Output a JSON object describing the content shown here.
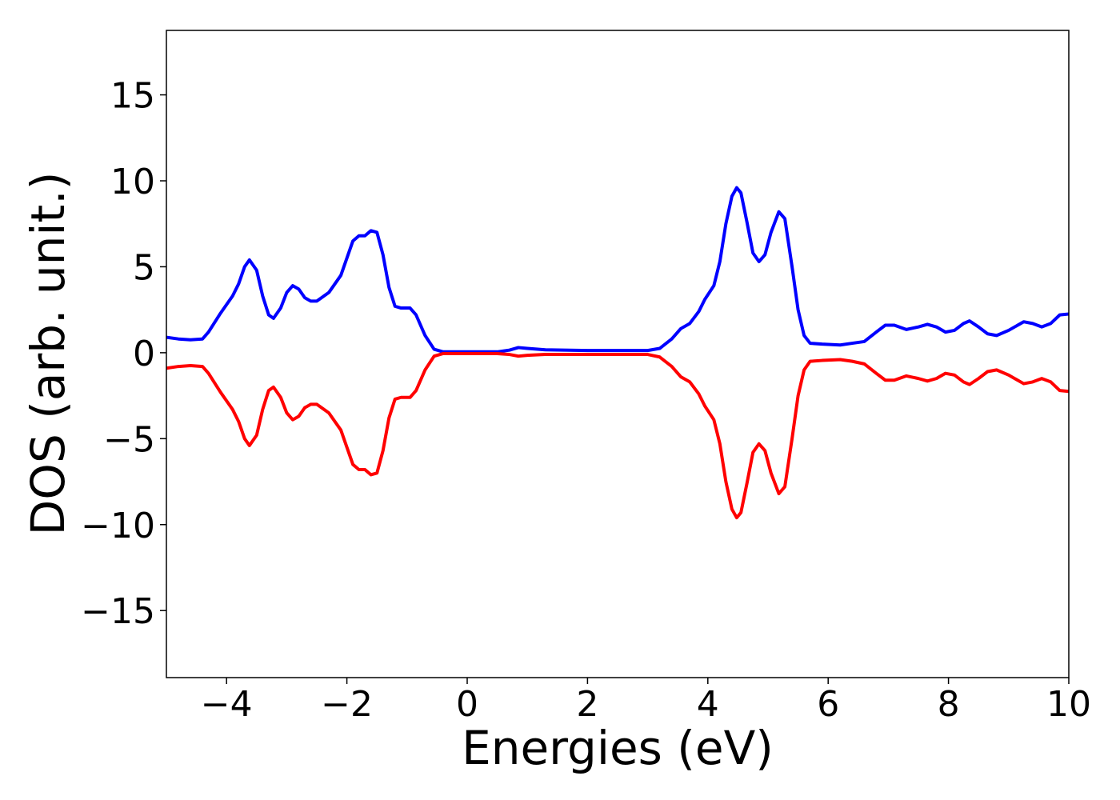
{
  "chart_data": {
    "type": "line",
    "xlabel": "Energies (eV)",
    "ylabel": "DOS (arb. unit.)",
    "x": [
      -5,
      -4.8,
      -4.6,
      -4.4,
      -4.3,
      -4.1,
      -3.9,
      -3.8,
      -3.7,
      -3.62,
      -3.5,
      -3.4,
      -3.3,
      -3.22,
      -3.1,
      -3.0,
      -2.9,
      -2.8,
      -2.7,
      -2.6,
      -2.5,
      -2.3,
      -2.1,
      -2.0,
      -1.9,
      -1.8,
      -1.7,
      -1.6,
      -1.5,
      -1.4,
      -1.3,
      -1.2,
      -1.1,
      -0.95,
      -0.85,
      -0.7,
      -0.55,
      -0.4,
      0,
      0.5,
      0.7,
      0.85,
      1.0,
      1.3,
      2,
      3,
      3.2,
      3.4,
      3.55,
      3.7,
      3.85,
      3.95,
      4.1,
      4.2,
      4.3,
      4.4,
      4.48,
      4.55,
      4.65,
      4.75,
      4.85,
      4.95,
      5.05,
      5.18,
      5.28,
      5.4,
      5.5,
      5.6,
      5.7,
      5.9,
      6.2,
      6.4,
      6.6,
      6.8,
      6.95,
      7.1,
      7.3,
      7.5,
      7.65,
      7.8,
      7.95,
      8.1,
      8.25,
      8.35,
      8.5,
      8.65,
      8.8,
      9.0,
      9.25,
      9.4,
      9.55,
      9.7,
      9.85,
      10
    ],
    "series": [
      {
        "color": "#0000ff",
        "values": [
          0.9,
          0.8,
          0.75,
          0.8,
          1.2,
          2.3,
          3.3,
          4.0,
          5.0,
          5.4,
          4.8,
          3.3,
          2.2,
          2.0,
          2.6,
          3.5,
          3.9,
          3.7,
          3.2,
          3.0,
          3.0,
          3.5,
          4.5,
          5.5,
          6.5,
          6.8,
          6.8,
          7.1,
          7.0,
          5.7,
          3.8,
          2.7,
          2.6,
          2.6,
          2.2,
          1.0,
          0.2,
          0.05,
          0.05,
          0.05,
          0.15,
          0.3,
          0.25,
          0.17,
          0.13,
          0.13,
          0.25,
          0.8,
          1.4,
          1.7,
          2.4,
          3.1,
          3.9,
          5.3,
          7.5,
          9.1,
          9.6,
          9.3,
          7.6,
          5.8,
          5.3,
          5.7,
          7.0,
          8.2,
          7.8,
          5.0,
          2.5,
          1.0,
          0.55,
          0.5,
          0.45,
          0.55,
          0.65,
          1.2,
          1.6,
          1.6,
          1.35,
          1.5,
          1.65,
          1.5,
          1.2,
          1.3,
          1.7,
          1.85,
          1.5,
          1.1,
          1.0,
          1.3,
          1.8,
          1.7,
          1.5,
          1.7,
          2.2,
          2.25
        ]
      },
      {
        "color": "#ff0000",
        "values": [
          -0.9,
          -0.8,
          -0.75,
          -0.8,
          -1.2,
          -2.3,
          -3.3,
          -4.0,
          -5.0,
          -5.4,
          -4.8,
          -3.3,
          -2.2,
          -2.0,
          -2.6,
          -3.5,
          -3.9,
          -3.7,
          -3.2,
          -3.0,
          -3.0,
          -3.5,
          -4.5,
          -5.5,
          -6.5,
          -6.8,
          -6.8,
          -7.1,
          -7.0,
          -5.7,
          -3.8,
          -2.7,
          -2.6,
          -2.6,
          -2.2,
          -1.0,
          -0.2,
          -0.05,
          -0.05,
          -0.05,
          -0.1,
          -0.2,
          -0.15,
          -0.1,
          -0.1,
          -0.1,
          -0.25,
          -0.8,
          -1.4,
          -1.7,
          -2.4,
          -3.1,
          -3.9,
          -5.3,
          -7.5,
          -9.1,
          -9.6,
          -9.3,
          -7.6,
          -5.8,
          -5.3,
          -5.7,
          -7.0,
          -8.2,
          -7.8,
          -5.0,
          -2.5,
          -1.0,
          -0.5,
          -0.45,
          -0.4,
          -0.5,
          -0.65,
          -1.2,
          -1.6,
          -1.6,
          -1.35,
          -1.5,
          -1.65,
          -1.5,
          -1.2,
          -1.3,
          -1.7,
          -1.85,
          -1.5,
          -1.1,
          -1.0,
          -1.3,
          -1.8,
          -1.7,
          -1.5,
          -1.7,
          -2.2,
          -2.25
        ]
      }
    ],
    "xlim": [
      -5,
      10
    ],
    "xticks": [
      {
        "value": -4,
        "label": "−4"
      },
      {
        "value": -2,
        "label": "−2"
      },
      0,
      2,
      4,
      6,
      8,
      10
    ],
    "ylim": [
      -18.9,
      18.75
    ],
    "yticks": [
      {
        "value": -15,
        "label": "−15"
      },
      {
        "value": -10,
        "label": "−10"
      },
      {
        "value": -5,
        "label": "−5"
      },
      0,
      5,
      10,
      15
    ],
    "grid": false
  }
}
